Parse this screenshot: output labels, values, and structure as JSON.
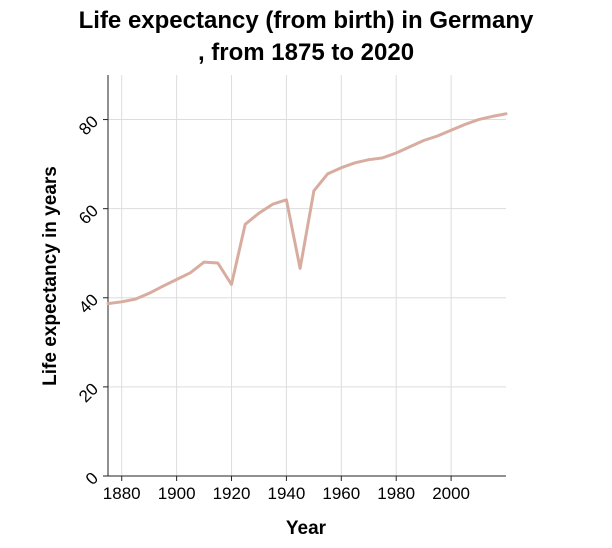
{
  "chart_data": {
    "type": "line",
    "title_lines": [
      "Life expectancy (from birth) in Germany",
      ", from 1875 to 2020"
    ],
    "xlabel": "Year",
    "ylabel": "Life expectancy in years",
    "xlim": [
      1875,
      2020
    ],
    "ylim": [
      0,
      90
    ],
    "xticks": [
      1880,
      1900,
      1920,
      1940,
      1960,
      1980,
      2000
    ],
    "yticks": [
      0,
      20,
      40,
      60,
      80
    ],
    "grid": true,
    "line_color": "#d8ada0",
    "grid_color": "#dddddd",
    "series": [
      {
        "name": "Life expectancy",
        "x": [
          1875,
          1880,
          1885,
          1890,
          1895,
          1900,
          1905,
          1910,
          1915,
          1920,
          1925,
          1930,
          1935,
          1940,
          1945,
          1950,
          1955,
          1960,
          1965,
          1970,
          1975,
          1980,
          1985,
          1990,
          1995,
          2000,
          2005,
          2010,
          2015,
          2020
        ],
        "values": [
          38.7,
          39.1,
          39.7,
          41.0,
          42.6,
          44.1,
          45.6,
          48.0,
          47.8,
          43.0,
          56.5,
          59.0,
          61.0,
          62.0,
          46.6,
          64.0,
          67.8,
          69.2,
          70.3,
          71.0,
          71.4,
          72.5,
          73.9,
          75.3,
          76.3,
          77.6,
          78.9,
          80.0,
          80.7,
          81.3
        ]
      }
    ]
  }
}
